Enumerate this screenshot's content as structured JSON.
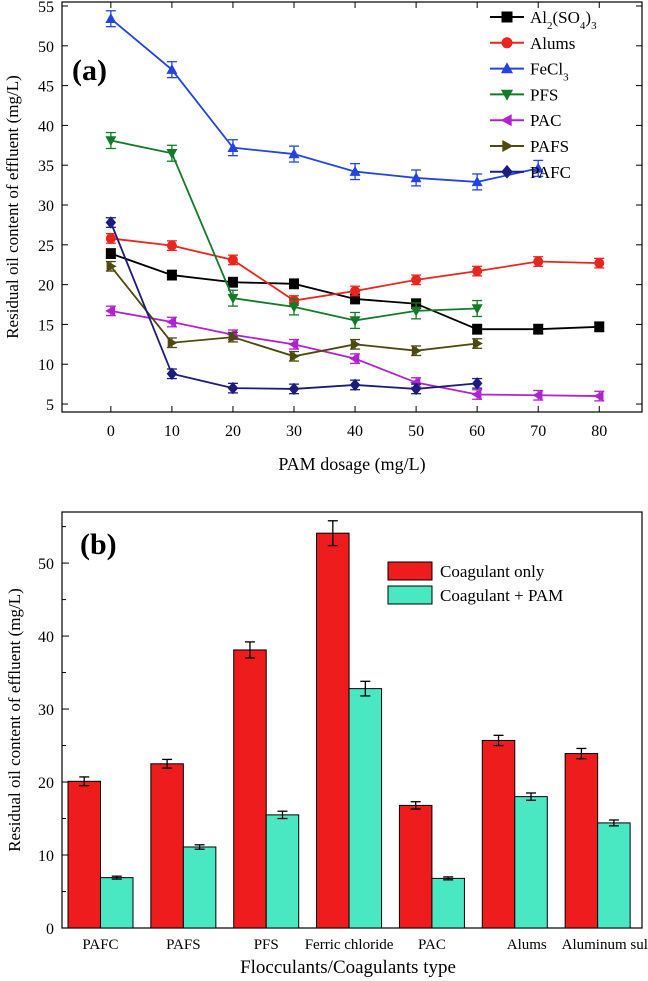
{
  "chart_data": [
    {
      "type": "line",
      "panel_label": "(a)",
      "xlabel": "PAM dosage  (mg/L)",
      "ylabel": "Residual oil content of effluent (mg/L)",
      "xlim": [
        -8,
        87
      ],
      "ylim": [
        4,
        55.5
      ],
      "xticks": [
        0,
        10,
        20,
        30,
        40,
        50,
        60,
        70,
        80
      ],
      "yticks": [
        5,
        10,
        15,
        20,
        25,
        30,
        35,
        40,
        45,
        50,
        55
      ],
      "x": [
        0,
        10,
        20,
        30,
        40,
        50,
        60,
        70,
        80
      ],
      "series": [
        {
          "name": "Al2(SO4)3",
          "legend_main": "Al",
          "legend_sub1": "2",
          "legend_mid": "(SO",
          "legend_sub2": "4",
          "legend_end": ")",
          "legend_sub3": "3",
          "color": "#000000",
          "marker": "square",
          "values": [
            23.9,
            21.2,
            20.3,
            20.1,
            18.2,
            17.6,
            14.4,
            14.4,
            14.7
          ]
        },
        {
          "name": "Alums",
          "color": "#e8251f",
          "marker": "circle",
          "values": [
            25.8,
            24.9,
            23.1,
            18.0,
            19.2,
            20.6,
            21.7,
            22.9,
            22.7
          ]
        },
        {
          "name": "FeCl3",
          "legend_main": "FeCl",
          "legend_sub1": "3",
          "color": "#2443e0",
          "marker": "triangle-up",
          "values": [
            53.4,
            47.0,
            37.2,
            36.4,
            34.2,
            33.4,
            32.9,
            34.6,
            null
          ]
        },
        {
          "name": "PFS",
          "color": "#127a28",
          "marker": "triangle-down",
          "values": [
            38.1,
            36.5,
            18.3,
            17.2,
            15.5,
            16.7,
            17.0,
            null,
            null
          ]
        },
        {
          "name": "PAC",
          "color": "#b022d0",
          "marker": "triangle-left",
          "values": [
            16.7,
            15.3,
            13.7,
            12.5,
            10.7,
            7.7,
            6.2,
            6.1,
            6.0
          ]
        },
        {
          "name": "PAFS",
          "color": "#4d4a10",
          "marker": "triangle-right",
          "values": [
            22.3,
            12.7,
            13.4,
            11.0,
            12.5,
            11.7,
            12.6,
            null,
            null
          ]
        },
        {
          "name": "PAFC",
          "color": "#1d1b7c",
          "marker": "diamond",
          "values": [
            27.8,
            8.8,
            7.0,
            6.9,
            7.4,
            6.9,
            7.6,
            null,
            null
          ]
        }
      ]
    },
    {
      "type": "bar",
      "panel_label": "(b)",
      "xlabel": "Flocculants/Coagulants type",
      "ylabel": "Residual oil content of effluent (mg/L)",
      "ylim": [
        0,
        57
      ],
      "yticks": [
        0,
        10,
        20,
        30,
        40,
        50
      ],
      "categories": [
        "PAFC",
        "PAFS",
        "PFS",
        "Ferric chloride",
        "PAC",
        "Alums",
        "Aluminum sulfate"
      ],
      "series": [
        {
          "name": "Coagulant only",
          "color": "#ee1c1c",
          "values": [
            20.1,
            22.5,
            38.1,
            54.1,
            16.8,
            25.7,
            23.9
          ],
          "errors": [
            0.6,
            0.6,
            1.1,
            1.7,
            0.5,
            0.7,
            0.7
          ]
        },
        {
          "name": "Coagulant + PAM",
          "color": "#4ae8c2",
          "values": [
            6.9,
            11.1,
            15.5,
            32.8,
            6.8,
            18.0,
            14.4
          ],
          "errors": [
            0.2,
            0.3,
            0.5,
            1.0,
            0.2,
            0.5,
            0.4
          ]
        }
      ]
    }
  ]
}
